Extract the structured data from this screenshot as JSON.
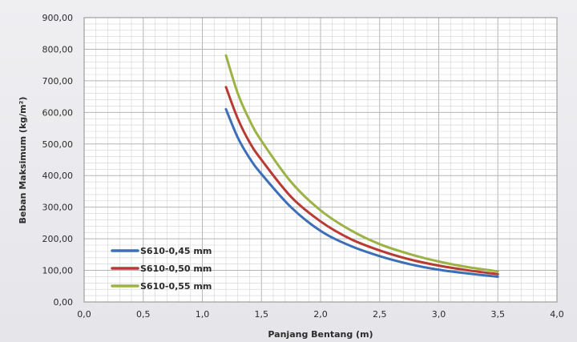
{
  "chart_data": {
    "type": "line",
    "xlabel": "Panjang Bentang (m)",
    "ylabel": "Beban Maksimum (kg/m²)",
    "xlim": [
      0,
      4
    ],
    "ylim": [
      0,
      900
    ],
    "x_ticks": [
      "0,0",
      "0,5",
      "1,0",
      "1,5",
      "2,0",
      "2,5",
      "3,0",
      "3,5",
      "4,0"
    ],
    "y_ticks": [
      "0,00",
      "100,00",
      "200,00",
      "300,00",
      "400,00",
      "500,00",
      "600,00",
      "700,00",
      "800,00",
      "900,00"
    ],
    "grid": true,
    "legend_position": "bottom-left",
    "series": [
      {
        "name": "S610-0,45 mm",
        "color": "#3c6fb8",
        "x": [
          1.2,
          1.3,
          1.4,
          1.5,
          1.75,
          2.0,
          2.25,
          2.5,
          2.75,
          3.0,
          3.25,
          3.5
        ],
        "y": [
          610,
          520,
          455,
          405,
          300,
          225,
          178,
          145,
          120,
          102,
          90,
          80
        ]
      },
      {
        "name": "S610-0,50 mm",
        "color": "#b83a33",
        "x": [
          1.2,
          1.3,
          1.4,
          1.5,
          1.75,
          2.0,
          2.25,
          2.5,
          2.75,
          3.0,
          3.25,
          3.5
        ],
        "y": [
          680,
          580,
          505,
          450,
          333,
          255,
          200,
          163,
          135,
          115,
          100,
          88
        ]
      },
      {
        "name": "S610-0,55 mm",
        "color": "#9bb244",
        "x": [
          1.2,
          1.3,
          1.4,
          1.5,
          1.75,
          2.0,
          2.25,
          2.5,
          2.75,
          3.0,
          3.25,
          3.5
        ],
        "y": [
          780,
          660,
          575,
          510,
          380,
          290,
          228,
          183,
          152,
          128,
          110,
          97
        ]
      }
    ]
  }
}
